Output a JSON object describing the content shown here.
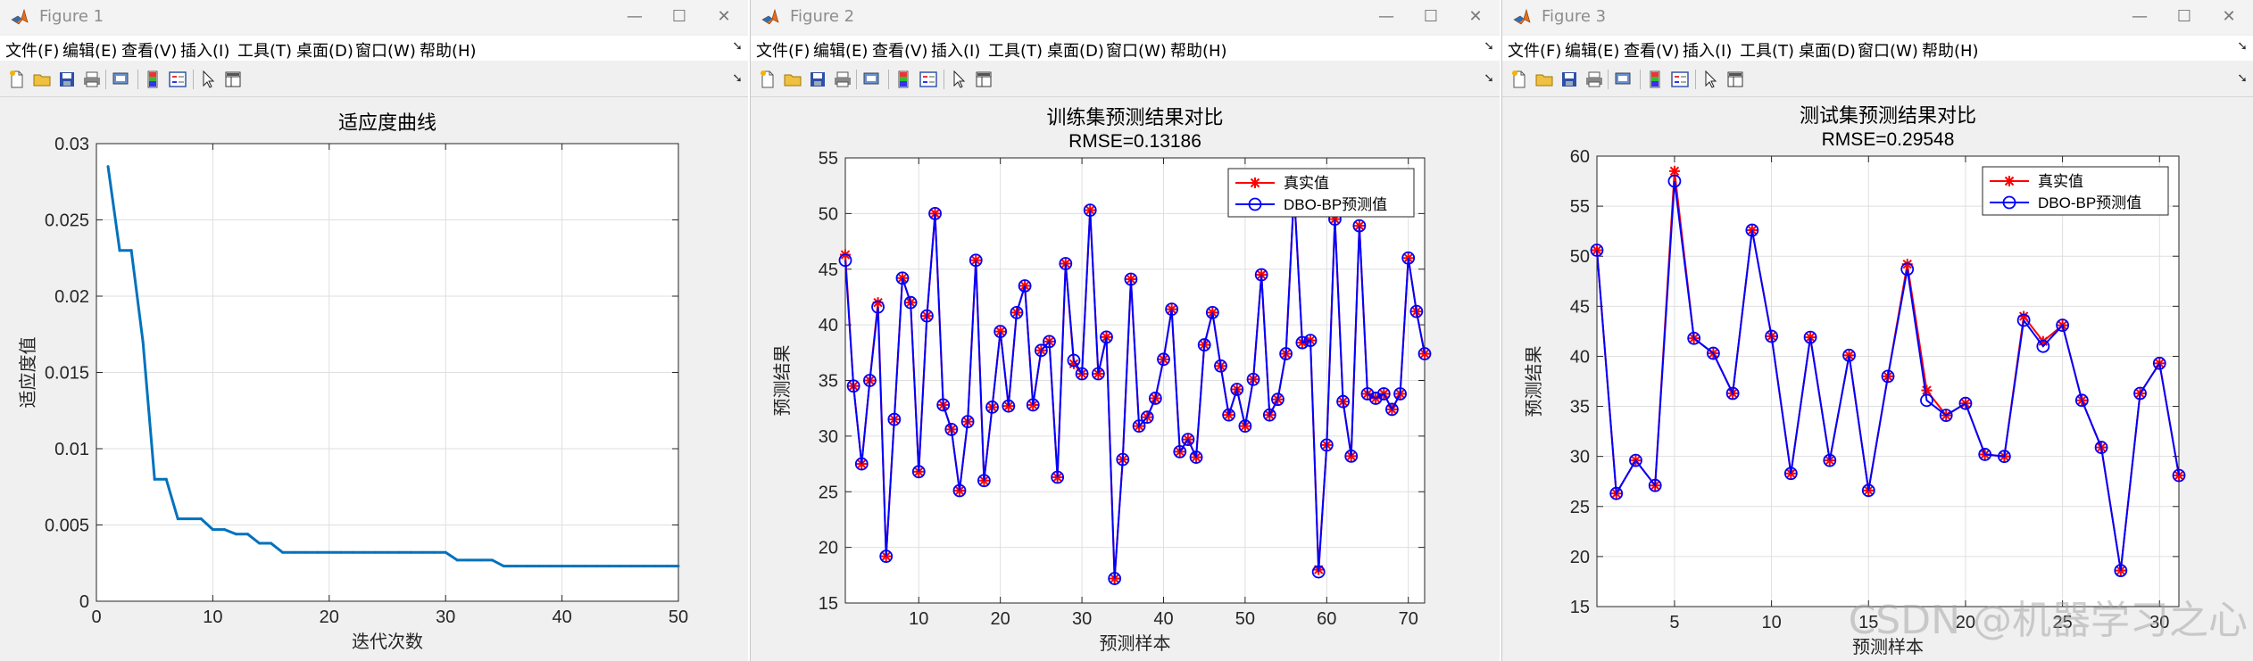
{
  "menu": [
    "文件(F)",
    "编辑(E)",
    "查看(V)",
    "插入(I)",
    "工具(T)",
    "桌面(D)",
    "窗口(W)",
    "帮助(H)"
  ],
  "toolbar_icons": [
    "new-file-icon",
    "open-folder-icon",
    "save-icon",
    "print-icon",
    "print-preview-icon",
    "colorbar-icon",
    "legend-icon",
    "pointer-icon",
    "property-editor-icon"
  ],
  "window_controls": {
    "minimize": "—",
    "maximize": "☐",
    "close": "✕"
  },
  "colors": {
    "curve": "#0072bd",
    "true_series": "#ff0000",
    "pred_series": "#0000ff",
    "window_bg": "#f0f0f0",
    "grid": "#dfdfdf"
  },
  "watermark": "CSDN @机器学习之心",
  "figures": [
    {
      "window_title": "Figure 1"
    },
    {
      "window_title": "Figure 2"
    },
    {
      "window_title": "Figure 3"
    }
  ],
  "chart_data": [
    {
      "type": "line",
      "title": "适应度曲线",
      "xlabel": "迭代次数",
      "ylabel": "适应度值",
      "xlim": [
        0,
        50
      ],
      "ylim": [
        0,
        0.03
      ],
      "xticks": [
        0,
        10,
        20,
        30,
        40,
        50
      ],
      "yticks": [
        0,
        0.005,
        0.01,
        0.015,
        0.02,
        0.025,
        0.03
      ],
      "grid": true,
      "x": [
        1,
        2,
        3,
        4,
        5,
        6,
        7,
        8,
        9,
        10,
        11,
        12,
        13,
        14,
        15,
        16,
        17,
        18,
        19,
        20,
        21,
        22,
        23,
        24,
        25,
        26,
        27,
        28,
        29,
        30,
        31,
        32,
        33,
        34,
        35,
        36,
        37,
        38,
        39,
        40,
        41,
        42,
        43,
        44,
        45,
        46,
        47,
        48,
        49,
        50
      ],
      "y": [
        0.0285,
        0.023,
        0.023,
        0.017,
        0.008,
        0.008,
        0.0054,
        0.0054,
        0.0054,
        0.0047,
        0.0047,
        0.0044,
        0.0044,
        0.0038,
        0.0038,
        0.0032,
        0.0032,
        0.0032,
        0.0032,
        0.0032,
        0.0032,
        0.0032,
        0.0032,
        0.0032,
        0.0032,
        0.0032,
        0.0032,
        0.0032,
        0.0032,
        0.0032,
        0.0027,
        0.0027,
        0.0027,
        0.0027,
        0.0023,
        0.0023,
        0.0023,
        0.0023,
        0.0023,
        0.0023,
        0.0023,
        0.0023,
        0.0023,
        0.0023,
        0.0023,
        0.0023,
        0.0023,
        0.0023,
        0.0023,
        0.0023
      ]
    },
    {
      "type": "line",
      "title": "训练集预测结果对比",
      "subtitle": "RMSE=0.13186",
      "xlabel": "预测样本",
      "ylabel": "预测结果",
      "xlim": [
        1,
        72
      ],
      "ylim": [
        15,
        55
      ],
      "xticks": [
        10,
        20,
        30,
        40,
        50,
        60,
        70
      ],
      "yticks": [
        15,
        20,
        25,
        30,
        35,
        40,
        45,
        50,
        55
      ],
      "grid": true,
      "legend_position": "top-right",
      "series": [
        {
          "name": "真实值",
          "values": [
            46.3,
            34.5,
            27.5,
            35.0,
            42.0,
            19.2,
            31.5,
            44.2,
            42.0,
            26.8,
            40.8,
            50.0,
            32.8,
            30.6,
            25.1,
            31.3,
            45.8,
            26.0,
            32.6,
            39.4,
            32.7,
            41.1,
            43.5,
            32.8,
            37.7,
            38.5,
            26.3,
            45.5,
            36.5,
            35.6,
            50.3,
            35.6,
            38.9,
            17.2,
            27.9,
            44.1,
            30.9,
            31.7,
            33.4,
            36.9,
            41.4,
            28.6,
            29.7,
            28.1,
            38.2,
            41.1,
            36.3,
            31.9,
            34.2,
            30.9,
            35.1,
            44.5,
            31.9,
            33.3,
            37.4,
            52.0,
            38.4,
            38.6,
            18.0,
            29.2,
            49.5,
            33.1,
            28.2,
            48.9,
            33.8,
            33.4,
            33.8,
            32.4,
            33.8,
            46.0,
            41.2,
            37.4
          ]
        },
        {
          "name": "DBO-BP预测值",
          "values": [
            45.8,
            34.5,
            27.5,
            35.0,
            41.6,
            19.2,
            31.5,
            44.2,
            42.0,
            26.8,
            40.8,
            50.0,
            32.8,
            30.6,
            25.1,
            31.3,
            45.8,
            26.0,
            32.6,
            39.4,
            32.7,
            41.1,
            43.5,
            32.8,
            37.7,
            38.5,
            26.3,
            45.5,
            36.8,
            35.6,
            50.3,
            35.6,
            38.9,
            17.2,
            27.9,
            44.1,
            30.9,
            31.7,
            33.4,
            36.9,
            41.4,
            28.6,
            29.7,
            28.1,
            38.2,
            41.1,
            36.3,
            31.9,
            34.2,
            30.9,
            35.1,
            44.5,
            31.9,
            33.3,
            37.4,
            52.0,
            38.4,
            38.6,
            17.8,
            29.2,
            49.5,
            33.1,
            28.2,
            48.9,
            33.8,
            33.4,
            33.8,
            32.4,
            33.8,
            46.0,
            41.2,
            37.4
          ]
        }
      ]
    },
    {
      "type": "line",
      "title": "测试集预测结果对比",
      "subtitle": "RMSE=0.29548",
      "xlabel": "预测样本",
      "ylabel": "预测结果",
      "xlim": [
        1,
        31
      ],
      "ylim": [
        15,
        60
      ],
      "xticks": [
        5,
        10,
        15,
        20,
        25,
        30
      ],
      "yticks": [
        15,
        20,
        25,
        30,
        35,
        40,
        45,
        50,
        55,
        60
      ],
      "grid": true,
      "legend_position": "top-right",
      "series": [
        {
          "name": "真实值",
          "values": [
            50.6,
            26.3,
            29.6,
            27.1,
            58.5,
            41.8,
            40.3,
            36.3,
            52.6,
            42.0,
            28.3,
            41.9,
            29.6,
            40.1,
            26.6,
            38.0,
            49.2,
            36.6,
            34.1,
            35.3,
            30.2,
            30.0,
            44.0,
            41.5,
            43.1,
            35.6,
            30.9,
            18.6,
            36.3,
            39.3,
            28.1
          ]
        },
        {
          "name": "DBO-BP预测值",
          "values": [
            50.6,
            26.3,
            29.6,
            27.1,
            57.5,
            41.8,
            40.3,
            36.3,
            52.6,
            42.0,
            28.3,
            41.9,
            29.6,
            40.1,
            26.6,
            38.0,
            48.7,
            35.6,
            34.1,
            35.3,
            30.2,
            30.0,
            43.6,
            41.0,
            43.1,
            35.6,
            30.9,
            18.6,
            36.3,
            39.3,
            28.1
          ]
        }
      ]
    }
  ]
}
